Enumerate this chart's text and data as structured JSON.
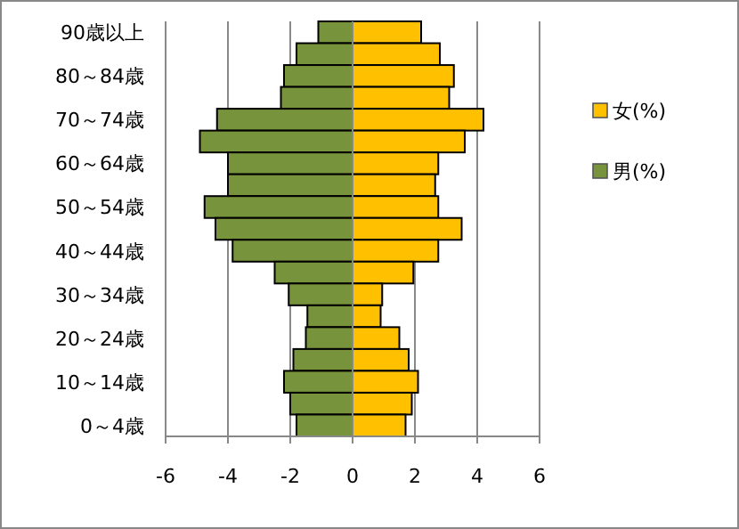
{
  "chart_data": {
    "type": "bar",
    "orientation": "horizontal",
    "categories": [
      "90歳以上",
      null,
      "80～84歳",
      null,
      "70～74歳",
      null,
      "60～64歳",
      null,
      "50～54歳",
      null,
      "40～44歳",
      null,
      "30～34歳",
      null,
      "20～24歳",
      null,
      "10～14歳",
      null,
      "0～4歳"
    ],
    "series": [
      {
        "name": "女(%)",
        "color": "#ffc000",
        "values": [
          2.2,
          2.8,
          3.25,
          3.1,
          4.2,
          3.6,
          2.75,
          2.65,
          2.75,
          3.5,
          2.75,
          1.95,
          0.95,
          0.9,
          1.5,
          1.8,
          2.1,
          1.9,
          1.7
        ]
      },
      {
        "name": "男(%)",
        "color": "#77933c",
        "values": [
          -1.1,
          -1.8,
          -2.2,
          -2.3,
          -4.35,
          -4.9,
          -4.0,
          -4.0,
          -4.75,
          -4.4,
          -3.85,
          -2.5,
          -2.05,
          -1.45,
          -1.5,
          -1.9,
          -2.2,
          -2.0,
          -1.8
        ]
      }
    ],
    "xlim": [
      -6,
      6
    ],
    "xticks": [
      -6,
      -4,
      -2,
      0,
      2,
      4,
      6
    ],
    "stacked": true,
    "grid": "x",
    "legend": "right"
  }
}
